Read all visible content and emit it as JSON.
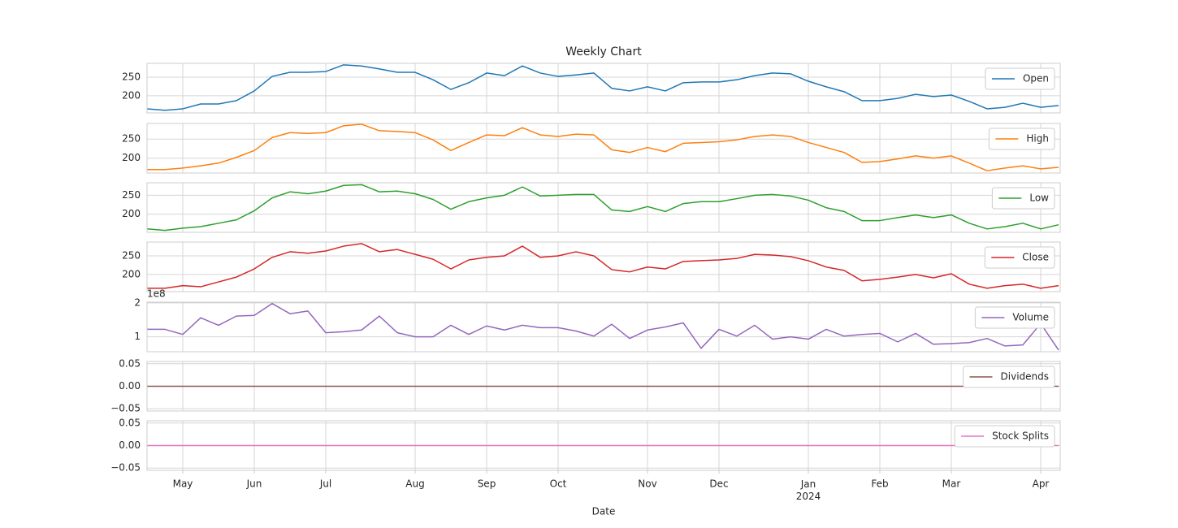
{
  "chart_data": {
    "type": "line",
    "title": "Weekly Chart",
    "xlabel": "Date",
    "categories": [
      null,
      null,
      "May",
      null,
      null,
      null,
      "Jun",
      null,
      null,
      null,
      "Jul",
      null,
      null,
      null,
      null,
      "Aug",
      null,
      null,
      null,
      "Sep",
      null,
      null,
      null,
      "Oct",
      null,
      null,
      null,
      null,
      "Nov",
      null,
      null,
      null,
      "Dec",
      null,
      null,
      null,
      null,
      "Jan\n2024",
      null,
      null,
      null,
      "Feb",
      null,
      null,
      null,
      "Mar",
      null,
      null,
      null,
      null,
      "Apr",
      null
    ],
    "grid": true,
    "legend": "upper right",
    "panels": [
      {
        "series": [
          {
            "name": "Open",
            "color": "#1f77b4",
            "values": [
              165,
              161,
              165,
              178,
              178,
              187,
              213,
              252,
              263,
              263,
              265,
              283,
              280,
              272,
              263,
              263,
              243,
              217,
              235,
              261,
              254,
              280,
              261,
              252,
              256,
              261,
              220,
              213,
              224,
              213,
              235,
              237,
              237,
              243,
              254,
              261,
              259,
              239,
              224,
              211,
              187,
              187,
              193,
              204,
              198,
              202,
              185,
              165,
              169,
              180,
              169,
              174
            ]
          }
        ],
        "ylim": [
          154,
          287
        ],
        "yticks": [
          200,
          250
        ]
      },
      {
        "series": [
          {
            "name": "High",
            "color": "#ff7f0e",
            "values": [
              170,
              170,
              174,
              180,
              187,
              202,
              220,
              254,
              267,
              265,
              267,
              285,
              289,
              272,
              270,
              267,
              248,
              220,
              241,
              261,
              259,
              280,
              261,
              257,
              263,
              261,
              222,
              215,
              228,
              217,
              239,
              241,
              243,
              248,
              257,
              261,
              257,
              241,
              228,
              215,
              189,
              191,
              198,
              206,
              200,
              206,
              187,
              167,
              174,
              180,
              172,
              176
            ]
          }
        ],
        "ylim": [
          161,
          291
        ],
        "yticks": [
          200,
          250
        ]
      },
      {
        "series": [
          {
            "name": "Low",
            "color": "#2ca02c",
            "values": [
              161,
              157,
              163,
              167,
              176,
              185,
              209,
              243,
              259,
              254,
              261,
              276,
              278,
              259,
              261,
              254,
              239,
              213,
              233,
              243,
              250,
              272,
              248,
              250,
              252,
              252,
              211,
              207,
              220,
              207,
              228,
              233,
              233,
              241,
              250,
              252,
              248,
              237,
              217,
              207,
              183,
              183,
              191,
              198,
              191,
              198,
              176,
              161,
              167,
              176,
              161,
              172
            ]
          }
        ],
        "ylim": [
          152,
          283
        ],
        "yticks": [
          200,
          250
        ]
      },
      {
        "series": [
          {
            "name": "Close",
            "color": "#d62728",
            "values": [
              163,
              163,
              170,
              167,
              180,
              193,
              215,
              246,
              261,
              257,
              263,
              276,
              283,
              261,
              267,
              254,
              241,
              215,
              239,
              246,
              250,
              276,
              246,
              250,
              261,
              250,
              213,
              207,
              220,
              215,
              235,
              237,
              239,
              243,
              254,
              252,
              248,
              237,
              220,
              211,
              183,
              187,
              193,
              200,
              191,
              202,
              174,
              163,
              170,
              174,
              163,
              170
            ]
          }
        ],
        "ylim": [
          154,
          287
        ],
        "yticks": [
          200,
          250
        ]
      },
      {
        "series": [
          {
            "name": "Volume",
            "color": "#9467bd",
            "values": [
              122000000,
              122000000,
              107000000,
              156000000,
              134000000,
              161000000,
              163000000,
              198000000,
              168000000,
              176000000,
              112000000,
              115000000,
              120000000,
              161000000,
              112000000,
              100000000,
              100000000,
              134000000,
              107000000,
              132000000,
              120000000,
              134000000,
              127000000,
              127000000,
              117000000,
              102000000,
              137000000,
              95000000,
              120000000,
              129000000,
              141000000,
              66000000,
              122000000,
              102000000,
              134000000,
              93000000,
              100000000,
              93000000,
              122000000,
              102000000,
              107000000,
              110000000,
              85000000,
              110000000,
              78000000,
              80000000,
              83000000,
              95000000,
              73000000,
              76000000,
              139000000,
              61000000
            ]
          }
        ],
        "ylim": [
          56000000,
          202000000
        ],
        "yticks": [
          {
            "value": 100000000,
            "label": "1"
          },
          {
            "value": 200000000,
            "label": "2"
          }
        ],
        "y_offset_label": "1e8"
      },
      {
        "series": [
          {
            "name": "Dividends",
            "color": "#8c564b",
            "values": [
              0,
              0,
              0,
              0,
              0,
              0,
              0,
              0,
              0,
              0,
              0,
              0,
              0,
              0,
              0,
              0,
              0,
              0,
              0,
              0,
              0,
              0,
              0,
              0,
              0,
              0,
              0,
              0,
              0,
              0,
              0,
              0,
              0,
              0,
              0,
              0,
              0,
              0,
              0,
              0,
              0,
              0,
              0,
              0,
              0,
              0,
              0,
              0,
              0,
              0,
              0,
              0
            ]
          }
        ],
        "ylim": [
          -0.055,
          0.055
        ],
        "yticks": [
          0.05,
          {
            "value": 0,
            "label": "0.00"
          },
          {
            "value": -0.05,
            "label": "−0.05"
          }
        ]
      },
      {
        "series": [
          {
            "name": "Stock Splits",
            "color": "#e377c2",
            "values": [
              0,
              0,
              0,
              0,
              0,
              0,
              0,
              0,
              0,
              0,
              0,
              0,
              0,
              0,
              0,
              0,
              0,
              0,
              0,
              0,
              0,
              0,
              0,
              0,
              0,
              0,
              0,
              0,
              0,
              0,
              0,
              0,
              0,
              0,
              0,
              0,
              0,
              0,
              0,
              0,
              0,
              0,
              0,
              0,
              0,
              0,
              0,
              0,
              0,
              0,
              0,
              0
            ]
          }
        ],
        "ylim": [
          -0.055,
          0.055
        ],
        "yticks": [
          0.05,
          {
            "value": 0,
            "label": "0.00"
          },
          {
            "value": -0.05,
            "label": "−0.05"
          }
        ]
      }
    ]
  }
}
